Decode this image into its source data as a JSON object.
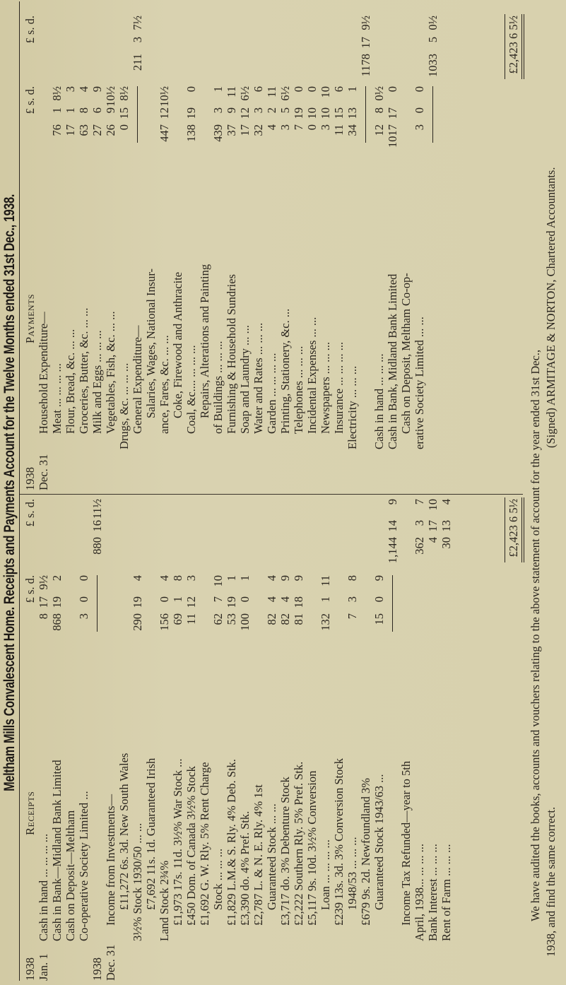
{
  "title": "Meltham Mills Convalescent Home.  Receipts and Payments Account for the Twelve Months ended 31st Dec., 1938.",
  "colors": {
    "paper": "#d8d1ae",
    "ink": "#2b261f"
  },
  "receipts": {
    "heading": {
      "year": "1938",
      "label": "Receipts",
      "col1": "£  s.  d.",
      "col2": "£  s.  d."
    },
    "rows": [
      {
        "date": "Jan. 1",
        "desc": "Cash in hand  ...  ...  ...  ...",
        "amt": [
          "8",
          "17",
          "9½"
        ]
      },
      {
        "desc": "Cash in Bank—Midland Bank Limited",
        "amt": [
          "868",
          "19",
          "2"
        ]
      },
      {
        "desc": "Cash on Deposit—Meltham"
      },
      {
        "desc": "Co-operative Society Limited  ...",
        "amt": [
          "3",
          "0",
          "0"
        ]
      },
      {
        "date": "1938",
        "total": [
          "880",
          "16",
          "11½"
        ]
      },
      {
        "date": "Dec. 31",
        "desc": "Income from Investments—"
      },
      {
        "desc": "£11,272 6s. 3d. New South Wales"
      },
      {
        "desc": "3½% Stock 1930/50  ...  ...",
        "amt": [
          "290",
          "19",
          "4"
        ]
      },
      {
        "desc": "£7,692 11s. 1d. Guaranteed Irish"
      },
      {
        "desc": "Land Stock 2¾%",
        "amt": [
          "156",
          "0",
          "4"
        ]
      },
      {
        "desc": "£1,973 17s. 11d. 3½% War Stock ...",
        "amt": [
          "69",
          "1",
          "8"
        ]
      },
      {
        "desc": "£450 Dom. of Canada 3½% Stock",
        "amt": [
          "11",
          "12",
          "3"
        ]
      },
      {
        "desc": "£1,692 G. W. Rly. 5% Rent Charge"
      },
      {
        "desc": "Stock  ...  ...  ...",
        "amt": [
          "62",
          "7",
          "10"
        ]
      },
      {
        "desc": "£1,829 L.M.& S. Rly. 4% Deb. Stk.",
        "amt": [
          "53",
          "19",
          "1"
        ]
      },
      {
        "desc": "£3,390    do.     4% Pref. Stk.",
        "amt": [
          "100",
          "0",
          "1"
        ]
      },
      {
        "desc": "£2,787 L. & N. E. Rly. 4% 1st"
      },
      {
        "desc": "Guaranteed Stock  ...  ...",
        "amt": [
          "82",
          "4",
          "4"
        ]
      },
      {
        "desc": "£3,717  do.  3% Debenture Stock",
        "amt": [
          "82",
          "4",
          "9"
        ]
      },
      {
        "desc": "£2,222 Southern Rly. 5% Pref. Stk.",
        "amt": [
          "81",
          "18",
          "9"
        ]
      },
      {
        "desc": "£5,117 9s. 10d. 3½% Conversion"
      },
      {
        "desc": "Loan  ...  ...  ...  ...",
        "amt": [
          "132",
          "1",
          "11"
        ]
      },
      {
        "desc": "£239 13s. 3d. 3% Conversion Stock"
      },
      {
        "desc": "1948/53  ...  ...  ...",
        "amt": [
          "7",
          "3",
          "8"
        ]
      },
      {
        "desc": "£679 9s. 2d. Newfoundland 3%"
      },
      {
        "desc": "Guaranteed Stock 1943/63  ...",
        "amt": [
          "15",
          "0",
          "9"
        ]
      },
      {
        "total": [
          "1,144",
          "14",
          "9"
        ]
      },
      {
        "desc": "Income Tax Refunded—year to 5th"
      },
      {
        "desc": "April, 1938...  ...  ...  ...",
        "total": [
          "362",
          "3",
          "7"
        ]
      },
      {
        "desc": "Bank Interest  ...  ...  ...",
        "total": [
          "4",
          "17",
          "10"
        ]
      },
      {
        "desc": "Rent of Farm  ...  ...  ...",
        "total": [
          "30",
          "13",
          "4"
        ]
      }
    ],
    "grand_total": "£2,423  6  5½"
  },
  "payments": {
    "heading": {
      "year": "1938",
      "label": "Payments",
      "col1": "£  s.  d.",
      "col2": "£  s.  d."
    },
    "rows": [
      {
        "date": "Dec. 31",
        "desc": "Household Expenditure—"
      },
      {
        "desc": "Meat  ...  ...  ...  ...",
        "amt": [
          "76",
          "1",
          "8½"
        ]
      },
      {
        "desc": "Flour, Bread, &c.  ...  ...",
        "amt": [
          "17",
          "1",
          "3"
        ]
      },
      {
        "desc": "Groceries, Butter, &c.  ...  ...",
        "amt": [
          "63",
          "8",
          "4"
        ]
      },
      {
        "desc": "Milk and Eggs  ...  ...  ...",
        "amt": [
          "27",
          "6",
          "9"
        ]
      },
      {
        "desc": "Vegetables, Fish, &c.  ...  ...",
        "amt": [
          "26",
          "9",
          "10½"
        ]
      },
      {
        "desc": "Drugs, &c.  ...  ...  ...",
        "amt": [
          "0",
          "15",
          "8½"
        ]
      },
      {
        "desc": "General Expenditure—",
        "total": [
          "211",
          "3",
          "7½"
        ]
      },
      {
        "desc": "Salaries, Wages, National Insur-"
      },
      {
        "desc": "ance, Fares, &c.  ...  ...",
        "amt": [
          "447",
          "12",
          "10½"
        ]
      },
      {
        "desc": "Coke, Firewood and Anthracite"
      },
      {
        "desc": "Coal, &c....  ...  ...  ...",
        "amt": [
          "138",
          "19",
          "0"
        ]
      },
      {
        "desc": "Repairs, Alterations and Painting"
      },
      {
        "desc": "of Buildings  ...  ...  ...",
        "amt": [
          "439",
          "3",
          "1"
        ]
      },
      {
        "desc": "Furnishing & Household Sundries",
        "amt": [
          "37",
          "9",
          "11"
        ]
      },
      {
        "desc": "Soap and Laundry  ...  ...",
        "amt": [
          "17",
          "12",
          "6½"
        ]
      },
      {
        "desc": "Water and Rates  ...  ...  ...",
        "amt": [
          "32",
          "3",
          "6"
        ]
      },
      {
        "desc": "Garden  ...  ...  ...  ...",
        "amt": [
          "4",
          "2",
          "11"
        ]
      },
      {
        "desc": "Printing, Stationery, &c.  ...",
        "amt": [
          "3",
          "5",
          "6½"
        ]
      },
      {
        "desc": "Telephones  ...  ...  ...",
        "amt": [
          "7",
          "19",
          "0"
        ]
      },
      {
        "desc": "Incidental Expenses  ...  ...",
        "amt": [
          "0",
          "10",
          "0"
        ]
      },
      {
        "desc": "Newspapers  ...  ...  ...",
        "amt": [
          "3",
          "10",
          "10"
        ]
      },
      {
        "desc": "Insurance ...  ...  ...  ...",
        "amt": [
          "11",
          "15",
          "6"
        ]
      },
      {
        "desc": "Electricity  ...  ...  ...",
        "amt": [
          "34",
          "13",
          "1"
        ]
      },
      {
        "total": [
          "1178",
          "17",
          "9½"
        ]
      },
      {
        "desc": "Cash in hand  ...  ...  ...",
        "amt": [
          "12",
          "8",
          "0½"
        ]
      },
      {
        "desc": "Cash in Bank, Midland Bank Limited",
        "amt": [
          "1017",
          "17",
          "0"
        ]
      },
      {
        "desc": "Cash on Deposit, Meltham Co-op-"
      },
      {
        "desc": "erative Society Limited  ...  ...",
        "amt": [
          "3",
          "0",
          "0"
        ]
      },
      {
        "total": [
          "1033",
          "5",
          "0½"
        ]
      }
    ],
    "grand_total": "£2,423  6  5½"
  },
  "audit": {
    "line1": "We have audited the books, accounts and vouchers relating to the above statement of account for the year ended 31st Dec.,",
    "line2": "1938, and find the same correct.",
    "signature": "(Signed) ARMITAGE & NORTON, Chartered Accountants."
  }
}
